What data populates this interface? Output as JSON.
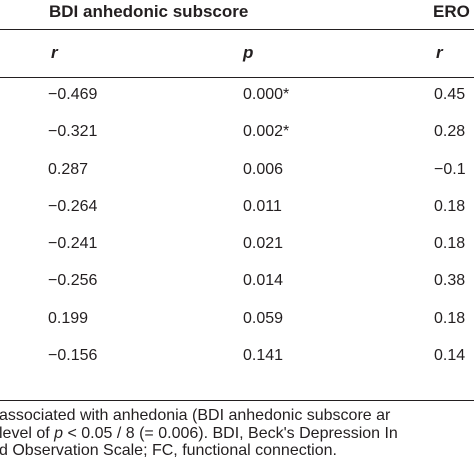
{
  "table": {
    "header": {
      "bdi_title": "BDI anhedonic subscore",
      "ero_title": "ERO"
    },
    "subheader": {
      "r1": "r",
      "p": "p",
      "r2": "r"
    },
    "rows": [
      {
        "r": "−0.469",
        "p": "0.000*",
        "r2": "0.45"
      },
      {
        "r": "−0.321",
        "p": "0.002*",
        "r2": "0.28"
      },
      {
        "r": "0.287",
        "p": "0.006",
        "r2": "−0.1"
      },
      {
        "r": "−0.264",
        "p": "0.011",
        "r2": "0.18"
      },
      {
        "r": "−0.241",
        "p": "0.021",
        "r2": "0.18"
      },
      {
        "r": "−0.256",
        "p": "0.014",
        "r2": "0.38"
      },
      {
        "r": "0.199",
        "p": "0.059",
        "r2": "0.18"
      },
      {
        "r": "−0.156",
        "p": "0.141",
        "r2": "0.14"
      }
    ]
  },
  "footnote": {
    "line1": "associated with anhedonia (BDI anhedonic subscore ar",
    "line2_a": "level of ",
    "line2_p": "p",
    "line2_b": " < 0.05 / 8 (= 0.006). BDI, Beck's Depression In",
    "line3": "d Observation Scale; FC, functional connection."
  }
}
